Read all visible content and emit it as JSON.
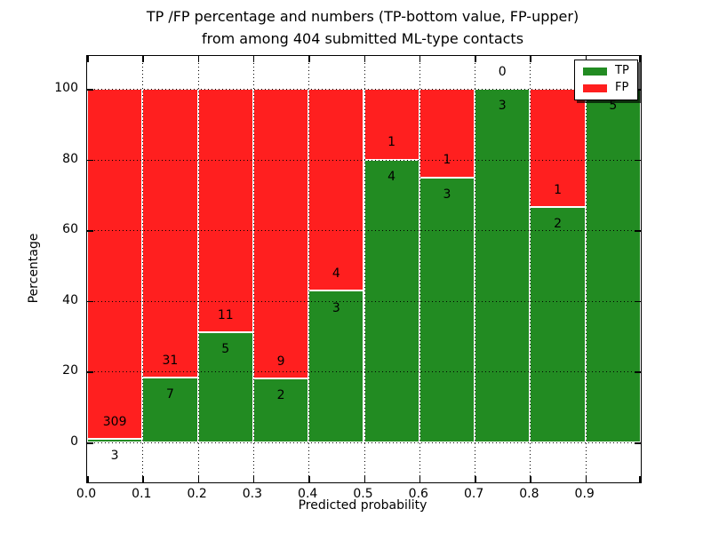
{
  "figure": {
    "title_line1": "TP /FP percentage and numbers (TP-bottom value, FP-upper)",
    "title_line2": "from among 404 submitted ML-type contacts",
    "background_color": "#ffffff"
  },
  "chart_data": {
    "type": "bar",
    "stacked": true,
    "normalized": "each bar scaled to 100%",
    "title": "TP /FP percentage and numbers (TP-bottom value, FP-upper) from among 404 submitted ML-type contacts",
    "xlabel": "Predicted probability",
    "ylabel": "Percentage",
    "total_contacts": 404,
    "bins": [
      [
        0.0,
        0.1
      ],
      [
        0.1,
        0.2
      ],
      [
        0.2,
        0.3
      ],
      [
        0.3,
        0.4
      ],
      [
        0.4,
        0.5
      ],
      [
        0.5,
        0.6
      ],
      [
        0.6,
        0.7
      ],
      [
        0.7,
        0.8
      ],
      [
        0.8,
        0.9
      ],
      [
        0.9,
        1.0
      ]
    ],
    "series": [
      {
        "name": "TP",
        "color": "#228b22",
        "counts": [
          3,
          7,
          5,
          2,
          3,
          4,
          3,
          3,
          2,
          5
        ]
      },
      {
        "name": "FP",
        "color": "#ff1f1f",
        "counts": [
          309,
          31,
          11,
          9,
          4,
          1,
          1,
          0,
          1,
          0
        ]
      }
    ],
    "tp_percent_of_bar": [
      0.96,
      18.42,
      31.25,
      18.18,
      42.86,
      80.0,
      75.0,
      100.0,
      66.67,
      100.0
    ],
    "xticks": [
      "0.0",
      "0.1",
      "0.2",
      "0.3",
      "0.4",
      "0.5",
      "0.6",
      "0.7",
      "0.8",
      "0.9"
    ],
    "yticks": [
      0,
      20,
      40,
      60,
      80,
      100
    ],
    "xlim": [
      0.0,
      1.0
    ],
    "ylim_percent": [
      0,
      100
    ],
    "grid": true,
    "gridline_style": "dotted",
    "bar_edge_color": "#ffffff",
    "legend": {
      "position": "upper right",
      "entries": [
        {
          "label": "TP",
          "color": "#228b22"
        },
        {
          "label": "FP",
          "color": "#ff1f1f"
        }
      ]
    }
  }
}
